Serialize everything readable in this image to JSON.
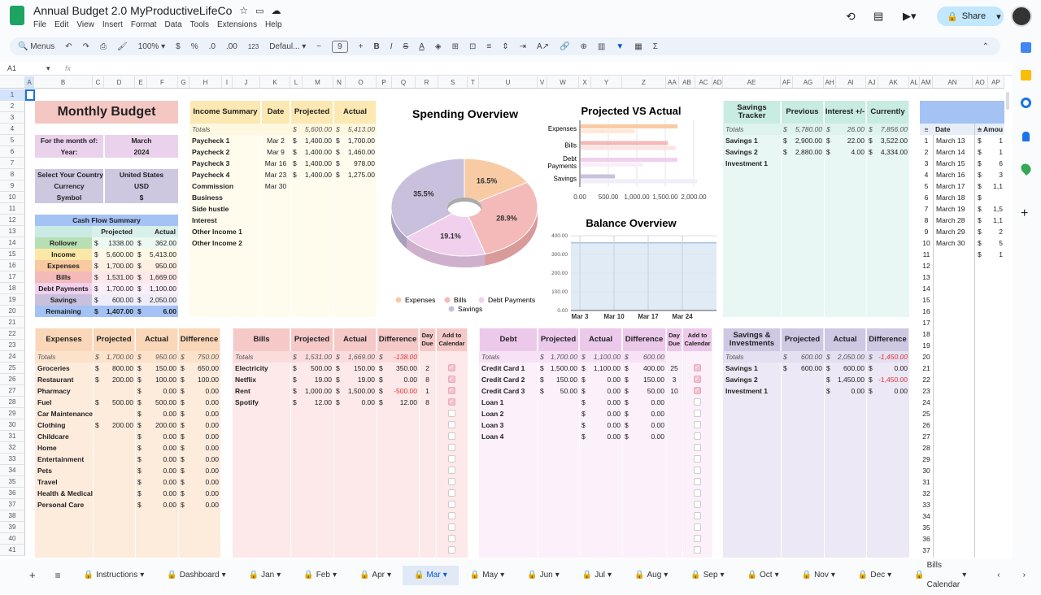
{
  "app": {
    "title": "Annual Budget 2.0 MyProductiveLifeCo",
    "menu": [
      "File",
      "Edit",
      "View",
      "Insert",
      "Format",
      "Data",
      "Tools",
      "Extensions",
      "Help"
    ],
    "share": "Share"
  },
  "toolbar": {
    "search": "Menus",
    "zoom": "100%",
    "font": "Defaul...",
    "font_size": "9",
    "currency": "$",
    "percent": "%",
    "dec_less": ".0",
    "dec_more": ".00",
    "format_123": "123"
  },
  "formula": {
    "cell_ref": "A1",
    "fx": "fx"
  },
  "columns": [
    "A",
    "B",
    "C",
    "D",
    "E",
    "F",
    "G",
    "H",
    "I",
    "J",
    "K",
    "L",
    "M",
    "N",
    "O",
    "P",
    "Q",
    "R",
    "S",
    "T",
    "U",
    "V",
    "W",
    "X",
    "Y",
    "Z",
    "AA",
    "AB",
    "AC",
    "AD",
    "AE",
    "AF",
    "AG",
    "AH",
    "AI",
    "AJ",
    "AK",
    "AL",
    "AM",
    "AN",
    "AO",
    "AP"
  ],
  "colors": {
    "peach": "#fad7b8",
    "pink": "#f6c9c9",
    "lilac": "#ecc9ea",
    "lavender": "#cfc8e3",
    "yellow": "#fce8b2",
    "teal": "#c8ebe2",
    "blue": "#a4c2f4",
    "accent": "#0b57d0"
  },
  "title": "Monthly Budget",
  "month": {
    "label": "For the month of:",
    "value": "March",
    "year_label": "Year:",
    "year": "2024"
  },
  "country": {
    "label": "Select Your Country",
    "value": "United States",
    "currency_label": "Currency",
    "currency": "USD",
    "symbol_label": "Symbol",
    "symbol": "$"
  },
  "cashflow": {
    "title": "Cash Flow Summary",
    "headers": [
      "Projected",
      "Actual"
    ],
    "rows": [
      [
        "Rollover",
        "1338.00",
        "362.00"
      ],
      [
        "Income",
        "5,600.00",
        "5,413.00"
      ],
      [
        "Expenses",
        "1,700.00",
        "950.00"
      ],
      [
        "Bills",
        "1,531.00",
        "1,669.00"
      ],
      [
        "Debt Payments",
        "1,700.00",
        "1,100.00"
      ],
      [
        "Savings",
        "600.00",
        "2,050.00"
      ],
      [
        "Remaining",
        "1,407.00",
        "6.00"
      ]
    ]
  },
  "income": {
    "headers": [
      "Income Summary",
      "Date",
      "Projected",
      "Actual"
    ],
    "totals": [
      "Totals",
      "",
      "5,600.00",
      "5,413.00"
    ],
    "rows": [
      [
        "Paycheck 1",
        "Mar 2",
        "1,400.00",
        "1,700.00"
      ],
      [
        "Paycheck 2",
        "Mar 9",
        "1,400.00",
        "1,460.00"
      ],
      [
        "Paycheck 3",
        "Mar 16",
        "1,400.00",
        "978.00"
      ],
      [
        "Paycheck 4",
        "Mar 23",
        "1,400.00",
        "1,275.00"
      ],
      [
        "Commission",
        "Mar 30",
        "",
        ""
      ],
      [
        "Business",
        "",
        "",
        ""
      ],
      [
        "Side hustle",
        "",
        "",
        ""
      ],
      [
        "Interest",
        "",
        "",
        ""
      ],
      [
        "Other Income 1",
        "",
        "",
        ""
      ],
      [
        "Other Income 2",
        "",
        "",
        ""
      ]
    ]
  },
  "savings_tracker": {
    "headers": [
      "Savings Tracker",
      "Previous",
      "Interest +/-",
      "Currently"
    ],
    "totals": [
      "Totals",
      "5,780.00",
      "26.00",
      "7,856.00"
    ],
    "rows": [
      [
        "Savings 1",
        "2,900.00",
        "22.00",
        "3,522.00"
      ],
      [
        "Savings 2",
        "2,880.00",
        "4.00",
        "4,334.00"
      ],
      [
        "Investment 1",
        "",
        "",
        ""
      ]
    ]
  },
  "side_table": {
    "headers": [
      "Date",
      "Amou"
    ],
    "rows": [
      [
        "1",
        "March 13",
        "1"
      ],
      [
        "2",
        "March 14",
        "1"
      ],
      [
        "3",
        "March 15",
        "6"
      ],
      [
        "4",
        "March 16",
        "3"
      ],
      [
        "5",
        "March 17",
        "1,1"
      ],
      [
        "6",
        "March 18",
        ""
      ],
      [
        "7",
        "March 19",
        "1,5"
      ],
      [
        "8",
        "March 28",
        "1,1"
      ],
      [
        "9",
        "March 29",
        "2"
      ],
      [
        "10",
        "March 30",
        "5"
      ],
      [
        "11",
        "",
        "1"
      ],
      [
        "12",
        "",
        ""
      ],
      [
        "13",
        "",
        ""
      ],
      [
        "14",
        "",
        ""
      ],
      [
        "15",
        "",
        ""
      ],
      [
        "16",
        "",
        ""
      ],
      [
        "17",
        "",
        ""
      ],
      [
        "18",
        "",
        ""
      ],
      [
        "19",
        "",
        ""
      ],
      [
        "20",
        "",
        ""
      ],
      [
        "21",
        "",
        ""
      ],
      [
        "22",
        "",
        ""
      ],
      [
        "23",
        "",
        ""
      ],
      [
        "24",
        "",
        ""
      ],
      [
        "25",
        "",
        ""
      ],
      [
        "26",
        "",
        ""
      ],
      [
        "27",
        "",
        ""
      ],
      [
        "28",
        "",
        ""
      ],
      [
        "29",
        "",
        ""
      ],
      [
        "30",
        "",
        ""
      ],
      [
        "31",
        "",
        ""
      ],
      [
        "32",
        "",
        ""
      ],
      [
        "33",
        "",
        ""
      ],
      [
        "34",
        "",
        ""
      ],
      [
        "35",
        "",
        ""
      ],
      [
        "36",
        "",
        ""
      ],
      [
        "37",
        "",
        ""
      ]
    ]
  },
  "expenses": {
    "headers": [
      "Expenses",
      "Projected",
      "Actual",
      "Difference"
    ],
    "totals": [
      "Totals",
      "1,700.00",
      "950.00",
      "750.00"
    ],
    "rows": [
      [
        "Groceries",
        "800.00",
        "150.00",
        "650.00"
      ],
      [
        "Restaurant",
        "200.00",
        "100.00",
        "100.00"
      ],
      [
        "Pharmacy",
        "",
        "0.00",
        "0.00"
      ],
      [
        "Fuel",
        "500.00",
        "500.00",
        "0.00"
      ],
      [
        "Car Maintenance",
        "",
        "0.00",
        "0.00"
      ],
      [
        "Clothing",
        "200.00",
        "200.00",
        "0.00"
      ],
      [
        "Childcare",
        "",
        "0.00",
        "0.00"
      ],
      [
        "Home",
        "",
        "0.00",
        "0.00"
      ],
      [
        "Entertainment",
        "",
        "0.00",
        "0.00"
      ],
      [
        "Pets",
        "",
        "0.00",
        "0.00"
      ],
      [
        "Travel",
        "",
        "0.00",
        "0.00"
      ],
      [
        "Health & Medical",
        "",
        "0.00",
        "0.00"
      ],
      [
        "Personal Care",
        "",
        "0.00",
        "0.00"
      ]
    ]
  },
  "bills": {
    "headers": [
      "Bills",
      "Projected",
      "Actual",
      "Difference",
      "Day Due",
      "Add to Calendar"
    ],
    "totals": [
      "Totals",
      "1,531.00",
      "1,669.00",
      "-138.00"
    ],
    "rows": [
      [
        "Electricity",
        "500.00",
        "150.00",
        "350.00",
        "2",
        true
      ],
      [
        "Netflix",
        "19.00",
        "19.00",
        "0.00",
        "8",
        true
      ],
      [
        "Rent",
        "1,000.00",
        "1,500.00",
        "-500.00",
        "1",
        true
      ],
      [
        "Spotify",
        "12.00",
        "0.00",
        "12.00",
        "8",
        true
      ]
    ],
    "empty_checkboxes": 13
  },
  "debt": {
    "headers": [
      "Debt",
      "Projected",
      "Actual",
      "Difference",
      "Day Due",
      "Add to Calendar"
    ],
    "totals": [
      "Totals",
      "1,700.00",
      "1,100.00",
      "600.00"
    ],
    "rows": [
      [
        "Credit Card 1",
        "1,500.00",
        "1,100.00",
        "400.00",
        "25",
        true
      ],
      [
        "Credit Card 2",
        "150.00",
        "0.00",
        "150.00",
        "3",
        true
      ],
      [
        "Credit Card 3",
        "50.00",
        "0.00",
        "50.00",
        "10",
        true
      ],
      [
        "Loan 1",
        "",
        "0.00",
        "0.00",
        "",
        false
      ],
      [
        "Loan 2",
        "",
        "0.00",
        "0.00",
        "",
        false
      ],
      [
        "Loan 3",
        "",
        "0.00",
        "0.00",
        "",
        false
      ],
      [
        "Loan 4",
        "",
        "0.00",
        "0.00",
        "",
        false
      ]
    ],
    "empty_checkboxes": 10
  },
  "savings_inv": {
    "headers": [
      "Savings & Investments",
      "Projected",
      "Actual",
      "Difference"
    ],
    "totals": [
      "Totals",
      "600.00",
      "2,050.00",
      "-1,450.00"
    ],
    "rows": [
      [
        "Savings 1",
        "600.00",
        "600.00",
        "0.00"
      ],
      [
        "Savings 2",
        "",
        "1,450.00",
        "-1,450.00"
      ],
      [
        "Investment 1",
        "",
        "0.00",
        "0.00"
      ]
    ]
  },
  "chart_data": [
    {
      "type": "pie",
      "title": "Spending Overview",
      "categories": [
        "Expenses",
        "Bills",
        "Debt Payments",
        "Savings"
      ],
      "values": [
        950,
        1669,
        1100,
        2050
      ],
      "labels": [
        "16.5%",
        "28.9%",
        "19.1%",
        "35.5%"
      ],
      "colors": [
        "#f9cba5",
        "#f4b9b9",
        "#f0d0ec",
        "#c9c0dd"
      ],
      "legend": "bottom"
    },
    {
      "type": "bar",
      "orientation": "horizontal",
      "title": "Projected VS Actual",
      "categories": [
        "Expenses",
        "Bills",
        "Debt Payments",
        "Savings"
      ],
      "series": [
        {
          "values": [
            1700,
            1531,
            1700,
            600
          ]
        },
        {
          "values": [
            950,
            1669,
            1100,
            2050
          ]
        }
      ],
      "xlim": [
        0,
        2000
      ],
      "ticks": [
        "0.00",
        "500.00",
        "1,000.00",
        "1,500.00",
        "2,000.00"
      ],
      "colors": [
        "#f9cba5",
        "#f4b9b9",
        "#f0d0ec",
        "#c9c0dd"
      ]
    },
    {
      "type": "area",
      "title": "Balance Overview",
      "x_ticks": [
        "Mar 3",
        "Mar 10",
        "Mar 17",
        "Mar 24"
      ],
      "y_ticks": [
        "0.00",
        "100.00",
        "200.00",
        "300.00",
        "400.00"
      ],
      "ylim": [
        0,
        400
      ],
      "values": [
        362,
        362
      ],
      "grid": true
    }
  ],
  "sheet_tabs": [
    "Instructions",
    "Dashboard",
    "Jan",
    "Feb",
    "Apr",
    "Mar",
    "May",
    "Jun",
    "Jul",
    "Aug",
    "Sep",
    "Oct",
    "Nov",
    "Dec",
    "Bills Calendar"
  ],
  "active_tab": "Mar"
}
